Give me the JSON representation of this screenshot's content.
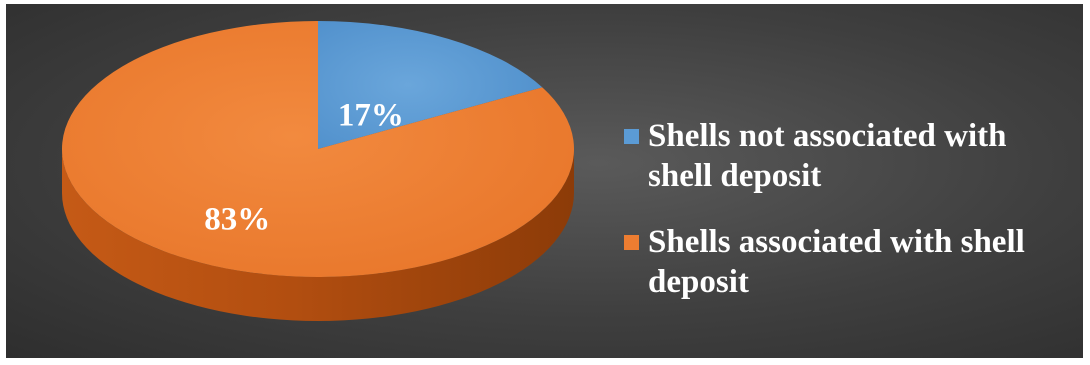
{
  "chart_data": {
    "type": "pie",
    "title": "",
    "categories": [
      "Shells not associated with shell deposit",
      "Shells associated with shell deposit"
    ],
    "values": [
      17,
      83
    ],
    "unit": "%",
    "data_labels": [
      "17%",
      "83%"
    ],
    "colors": [
      "#5b9bd5",
      "#ed7d31"
    ],
    "style": "3d",
    "legend_position": "right",
    "background": "#444444"
  },
  "legend": {
    "entries": [
      {
        "label": "Shells not associated with shell deposit",
        "color": "#5b9bd5"
      },
      {
        "label": "Shells associated with shell deposit",
        "color": "#ed7d31"
      }
    ]
  }
}
